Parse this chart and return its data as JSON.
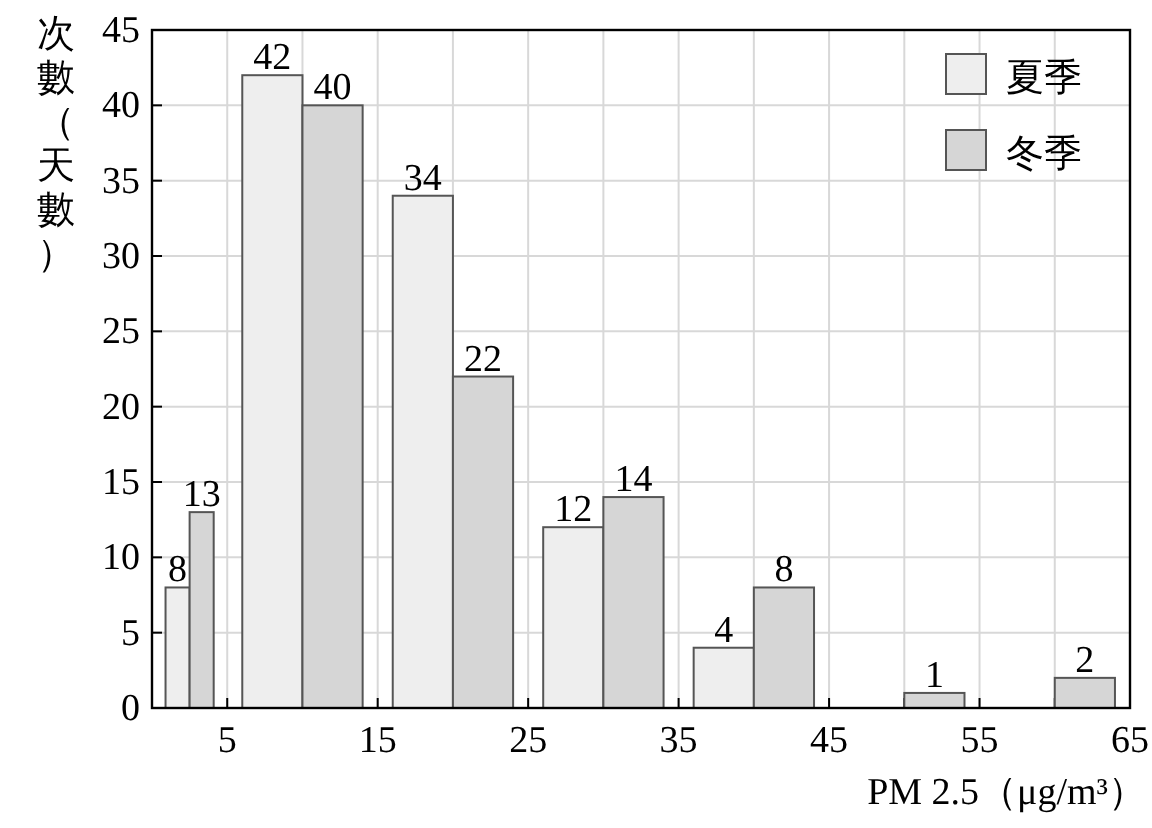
{
  "chart_data": {
    "type": "bar",
    "xlabel": "PM 2.5（μg/m³）",
    "ylabel": "次數（天數）",
    "x": [
      2.5,
      10,
      20,
      30,
      40,
      50,
      60
    ],
    "series": [
      {
        "name": "夏季",
        "color": "#eeeeee",
        "values": [
          8,
          42,
          34,
          12,
          4,
          null,
          null
        ]
      },
      {
        "name": "冬季",
        "color": "#d6d6d6",
        "values": [
          13,
          40,
          22,
          14,
          8,
          1,
          2
        ]
      }
    ],
    "xlim": [
      0,
      65
    ],
    "ylim": [
      0,
      45
    ],
    "xticks": [
      5,
      {
        "value": 10,
        "label": null
      },
      15,
      {
        "value": 20,
        "label": null
      },
      25,
      {
        "value": 30,
        "label": null
      },
      35,
      {
        "value": 40,
        "label": null
      },
      45,
      {
        "value": 50,
        "label": null
      },
      55,
      {
        "value": 60,
        "label": null
      },
      65
    ],
    "yticks": [
      0,
      5,
      10,
      15,
      20,
      25,
      30,
      35,
      40,
      45
    ],
    "grid": true,
    "legend": "top right",
    "data_labels": true
  }
}
